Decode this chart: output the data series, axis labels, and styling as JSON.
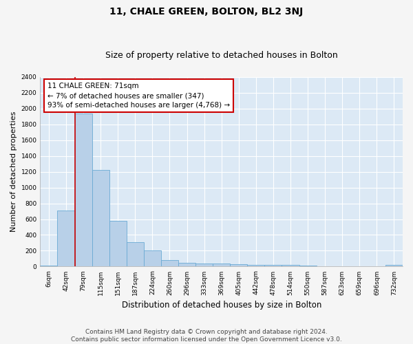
{
  "title": "11, CHALE GREEN, BOLTON, BL2 3NJ",
  "subtitle": "Size of property relative to detached houses in Bolton",
  "xlabel": "Distribution of detached houses by size in Bolton",
  "ylabel": "Number of detached properties",
  "categories": [
    "6sqm",
    "42sqm",
    "79sqm",
    "115sqm",
    "151sqm",
    "187sqm",
    "224sqm",
    "260sqm",
    "296sqm",
    "333sqm",
    "369sqm",
    "405sqm",
    "442sqm",
    "478sqm",
    "514sqm",
    "550sqm",
    "587sqm",
    "623sqm",
    "659sqm",
    "696sqm",
    "732sqm"
  ],
  "values": [
    15,
    705,
    1935,
    1220,
    575,
    310,
    200,
    85,
    47,
    38,
    35,
    32,
    22,
    20,
    18,
    10,
    8,
    5,
    5,
    5,
    20
  ],
  "bar_color": "#b8d0e8",
  "bar_edgecolor": "#6aaad4",
  "background_color": "#dce9f5",
  "grid_color": "#ffffff",
  "annotation_text": "11 CHALE GREEN: 71sqm\n← 7% of detached houses are smaller (347)\n93% of semi-detached houses are larger (4,768) →",
  "annotation_box_color": "#ffffff",
  "annotation_box_edgecolor": "#cc0000",
  "vline_color": "#cc0000",
  "vline_x": 1.5,
  "ylim": [
    0,
    2400
  ],
  "yticks": [
    0,
    200,
    400,
    600,
    800,
    1000,
    1200,
    1400,
    1600,
    1800,
    2000,
    2200,
    2400
  ],
  "footer": "Contains HM Land Registry data © Crown copyright and database right 2024.\nContains public sector information licensed under the Open Government Licence v3.0.",
  "title_fontsize": 10,
  "subtitle_fontsize": 9,
  "xlabel_fontsize": 8.5,
  "ylabel_fontsize": 8,
  "tick_fontsize": 6.5,
  "annotation_fontsize": 7.5,
  "footer_fontsize": 6.5,
  "fig_width": 6.0,
  "fig_height": 5.0,
  "fig_bg_color": "#f5f5f5"
}
